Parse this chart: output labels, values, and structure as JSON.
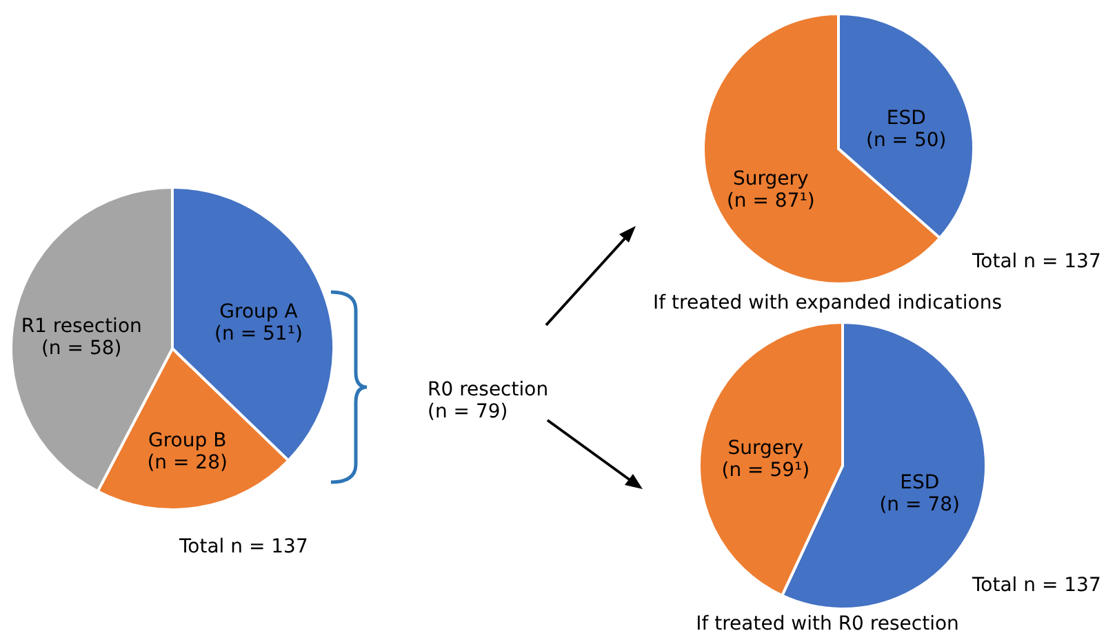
{
  "chart_data": [
    {
      "type": "pie",
      "categories": [
        "Group A\n(n = 51¹)",
        "Group B\n(n = 28)",
        "R1 resection\n(n = 58)"
      ],
      "values": [
        51,
        28,
        58
      ],
      "colors": [
        "#4472c4",
        "#ed7d31",
        "#a5a5a5"
      ],
      "annotations": [
        "Total n = 137",
        "R0 resection\n(n = 79)"
      ]
    },
    {
      "type": "pie",
      "title": "If treated with expanded indications",
      "categories": [
        "ESD\n(n = 50)",
        "Surgery\n(n = 87¹)"
      ],
      "values": [
        50,
        87
      ],
      "colors": [
        "#4472c4",
        "#ed7d31"
      ],
      "annotations": [
        "Total n = 137"
      ]
    },
    {
      "type": "pie",
      "title": "If treated with R0 resection",
      "categories": [
        "ESD\n(n = 78)",
        "Surgery\n(n = 59¹)"
      ],
      "values": [
        78,
        59
      ],
      "colors": [
        "#4472c4",
        "#ed7d31"
      ],
      "annotations": [
        "Total n = 137"
      ]
    }
  ]
}
